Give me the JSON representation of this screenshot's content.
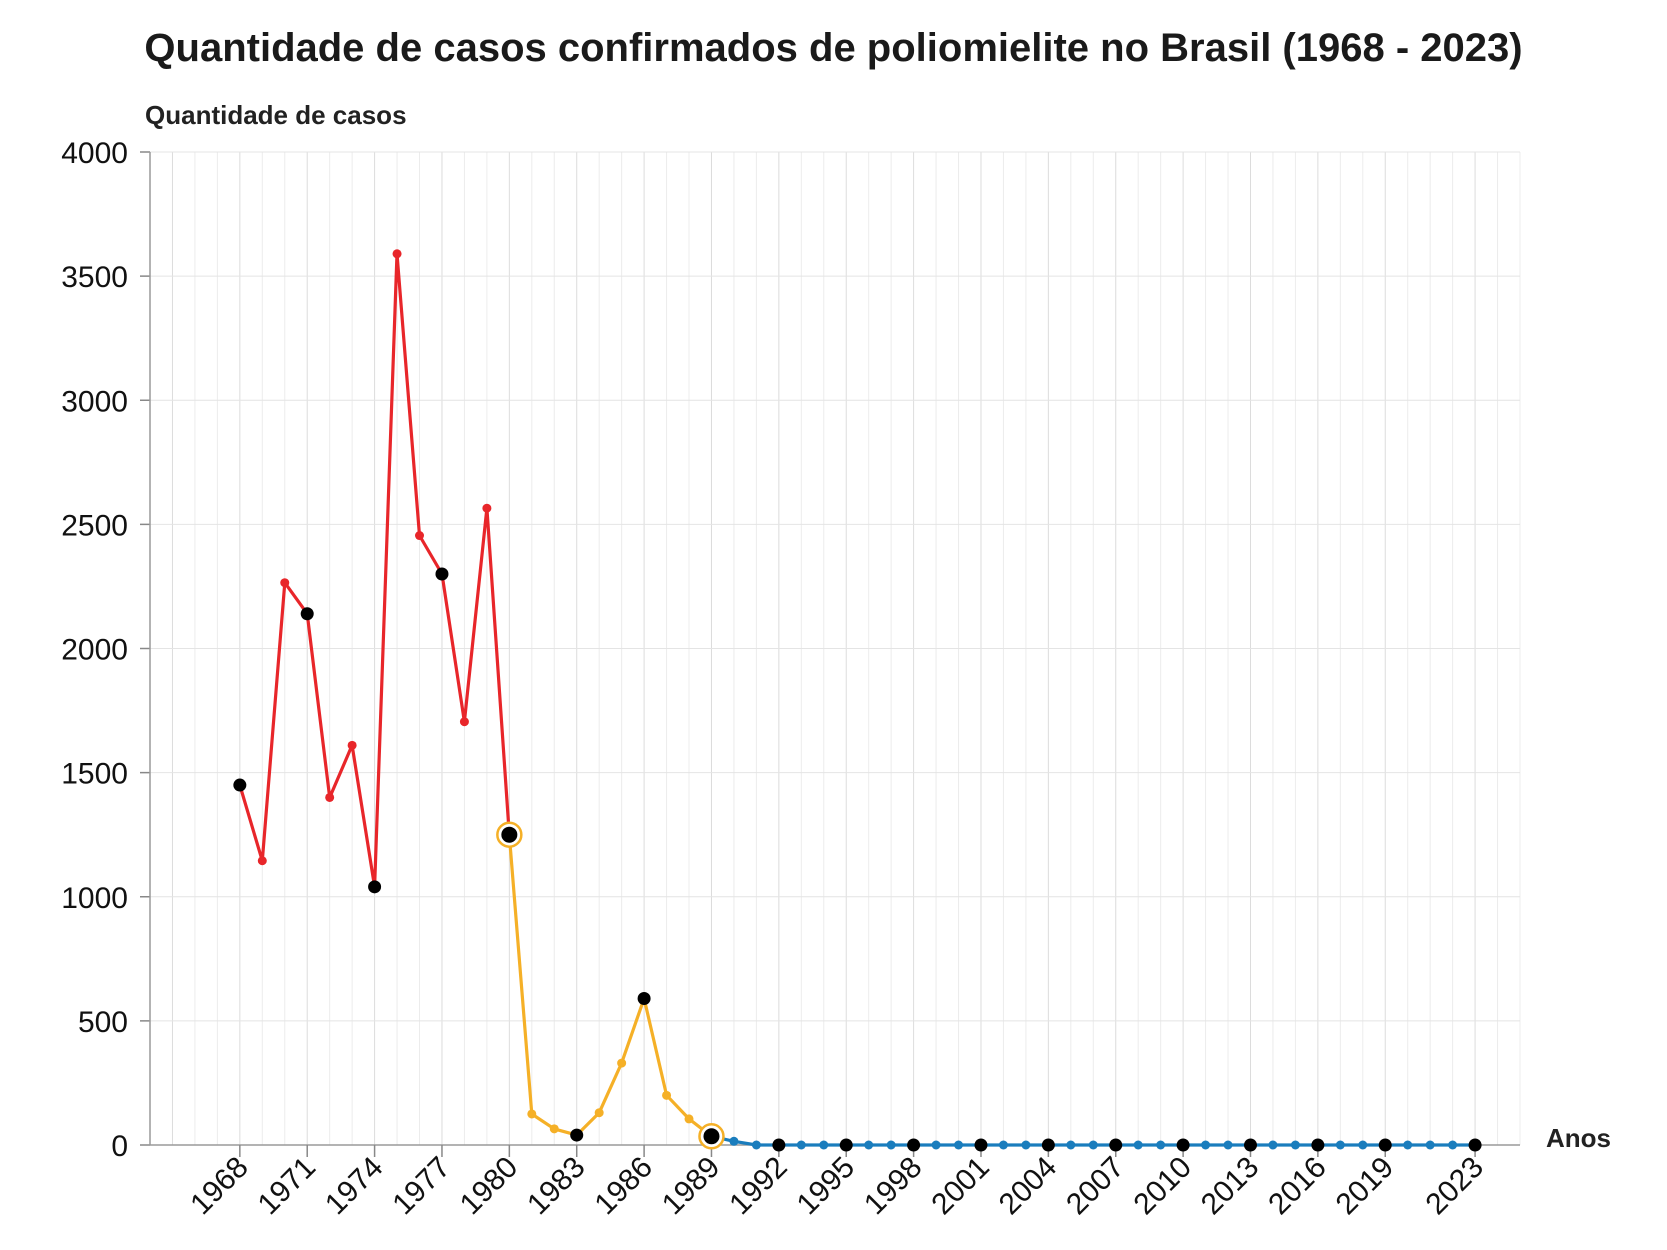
{
  "chart_data": {
    "type": "line",
    "title": "Quantidade de casos confirmados de poliomielite no Brasil (1968 - 2023)",
    "ylabel": "Quantidade de casos",
    "xlabel": "Anos",
    "ylim": [
      0,
      4000
    ],
    "xlim": [
      1964,
      2025
    ],
    "y_ticks": [
      0,
      500,
      1000,
      1500,
      2000,
      2500,
      3000,
      3500,
      4000
    ],
    "x_tick_labels": [
      "1968",
      "1971",
      "1974",
      "1977",
      "1980",
      "1983",
      "1986",
      "1989",
      "1992",
      "1995",
      "1998",
      "2001",
      "2004",
      "2007",
      "2010",
      "2013",
      "2016",
      "2019",
      "2023"
    ],
    "grid": true,
    "series": [
      {
        "color": "#e8262a",
        "points": [
          {
            "x": 1968,
            "y": 1450
          },
          {
            "x": 1969,
            "y": 1145
          },
          {
            "x": 1970,
            "y": 2265
          },
          {
            "x": 1971,
            "y": 2140
          },
          {
            "x": 1972,
            "y": 1400
          },
          {
            "x": 1973,
            "y": 1610
          },
          {
            "x": 1974,
            "y": 1040
          },
          {
            "x": 1975,
            "y": 3590
          },
          {
            "x": 1976,
            "y": 2455
          },
          {
            "x": 1977,
            "y": 2300
          },
          {
            "x": 1978,
            "y": 1705
          },
          {
            "x": 1979,
            "y": 2565
          },
          {
            "x": 1980,
            "y": 1250
          }
        ]
      },
      {
        "color": "#f5b027",
        "points": [
          {
            "x": 1980,
            "y": 1250
          },
          {
            "x": 1981,
            "y": 125
          },
          {
            "x": 1982,
            "y": 65
          },
          {
            "x": 1983,
            "y": 40
          },
          {
            "x": 1984,
            "y": 130
          },
          {
            "x": 1985,
            "y": 330
          },
          {
            "x": 1986,
            "y": 590
          },
          {
            "x": 1987,
            "y": 200
          },
          {
            "x": 1988,
            "y": 105
          },
          {
            "x": 1989,
            "y": 35
          }
        ]
      },
      {
        "color": "#1a7dbd",
        "points": [
          {
            "x": 1989,
            "y": 35
          },
          {
            "x": 1990,
            "y": 15
          },
          {
            "x": 1991,
            "y": 0
          },
          {
            "x": 1992,
            "y": 0
          },
          {
            "x": 1993,
            "y": 0
          },
          {
            "x": 1994,
            "y": 0
          },
          {
            "x": 1995,
            "y": 0
          },
          {
            "x": 1996,
            "y": 0
          },
          {
            "x": 1997,
            "y": 0
          },
          {
            "x": 1998,
            "y": 0
          },
          {
            "x": 1999,
            "y": 0
          },
          {
            "x": 2000,
            "y": 0
          },
          {
            "x": 2001,
            "y": 0
          },
          {
            "x": 2002,
            "y": 0
          },
          {
            "x": 2003,
            "y": 0
          },
          {
            "x": 2004,
            "y": 0
          },
          {
            "x": 2005,
            "y": 0
          },
          {
            "x": 2006,
            "y": 0
          },
          {
            "x": 2007,
            "y": 0
          },
          {
            "x": 2008,
            "y": 0
          },
          {
            "x": 2009,
            "y": 0
          },
          {
            "x": 2010,
            "y": 0
          },
          {
            "x": 2011,
            "y": 0
          },
          {
            "x": 2012,
            "y": 0
          },
          {
            "x": 2013,
            "y": 0
          },
          {
            "x": 2014,
            "y": 0
          },
          {
            "x": 2015,
            "y": 0
          },
          {
            "x": 2016,
            "y": 0
          },
          {
            "x": 2017,
            "y": 0
          },
          {
            "x": 2018,
            "y": 0
          },
          {
            "x": 2019,
            "y": 0
          },
          {
            "x": 2020,
            "y": 0
          },
          {
            "x": 2021,
            "y": 0
          },
          {
            "x": 2022,
            "y": 0
          },
          {
            "x": 2023,
            "y": 0
          }
        ]
      }
    ],
    "highlighted_points": [
      {
        "x": 1968,
        "y": 1450
      },
      {
        "x": 1971,
        "y": 2140
      },
      {
        "x": 1974,
        "y": 1040
      },
      {
        "x": 1977,
        "y": 2300
      },
      {
        "x": 1980,
        "y": 1250,
        "ring": true
      },
      {
        "x": 1983,
        "y": 40
      },
      {
        "x": 1986,
        "y": 590
      },
      {
        "x": 1989,
        "y": 35,
        "ring": true
      },
      {
        "x": 1992,
        "y": 0
      },
      {
        "x": 1995,
        "y": 0
      },
      {
        "x": 1998,
        "y": 0
      },
      {
        "x": 2001,
        "y": 0
      },
      {
        "x": 2004,
        "y": 0
      },
      {
        "x": 2007,
        "y": 0
      },
      {
        "x": 2010,
        "y": 0
      },
      {
        "x": 2013,
        "y": 0
      },
      {
        "x": 2016,
        "y": 0
      },
      {
        "x": 2019,
        "y": 0
      },
      {
        "x": 2023,
        "y": 0
      }
    ]
  }
}
